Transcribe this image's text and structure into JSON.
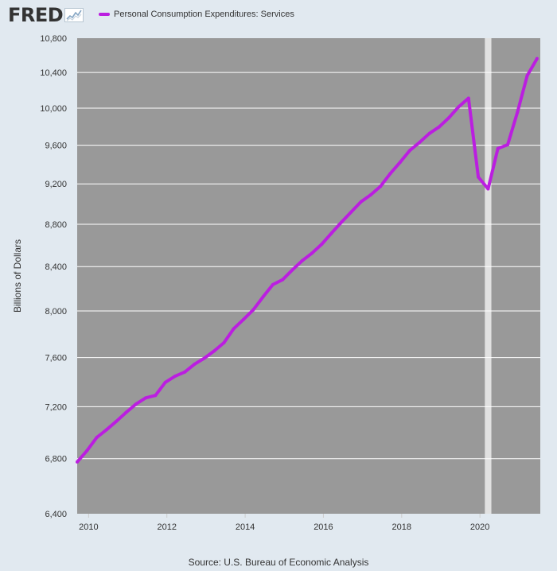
{
  "header": {
    "logo_text": "FRED",
    "logo_icon": "fred-chart-icon"
  },
  "legend": {
    "series_label": "Personal Consumption Expenditures: Services"
  },
  "colors": {
    "background": "#e1e9f0",
    "plot_background": "#999999",
    "series": "#bb1ee0",
    "recession_band": "#e1e1e1",
    "grid": "#ffffff"
  },
  "source": "Source: U.S. Bureau of Economic Analysis",
  "chart_data": {
    "type": "line",
    "title": "",
    "xlabel": "",
    "ylabel": "Billions of Dollars",
    "y_scale": "log",
    "xlim": [
      2009.708,
      2021.542
    ],
    "ylim": [
      6400,
      10800
    ],
    "grid": "horizontal",
    "legend_position": "top-left",
    "y_ticks": [
      6400,
      6800,
      7200,
      7600,
      8000,
      8400,
      8800,
      9200,
      9600,
      10000,
      10400,
      10800
    ],
    "y_tick_labels": [
      "6,400",
      "6,800",
      "7,200",
      "7,600",
      "8,000",
      "8,400",
      "8,800",
      "9,200",
      "9,600",
      "10,000",
      "10,400",
      "10,800"
    ],
    "x_ticks": [
      2010,
      2012,
      2014,
      2016,
      2018,
      2020
    ],
    "x_tick_labels": [
      "2010",
      "2012",
      "2014",
      "2016",
      "2018",
      "2020"
    ],
    "recession": [
      2020.125,
      2020.292
    ],
    "series": [
      {
        "name": "Personal Consumption Expenditures: Services",
        "x": [
          2009.708,
          2009.958,
          2010.208,
          2010.458,
          2010.708,
          2010.958,
          2011.208,
          2011.458,
          2011.708,
          2011.958,
          2012.208,
          2012.458,
          2012.708,
          2012.958,
          2013.208,
          2013.458,
          2013.708,
          2013.958,
          2014.208,
          2014.458,
          2014.708,
          2014.958,
          2015.208,
          2015.458,
          2015.708,
          2015.958,
          2016.208,
          2016.458,
          2016.708,
          2016.958,
          2017.208,
          2017.458,
          2017.708,
          2017.958,
          2018.208,
          2018.458,
          2018.708,
          2018.958,
          2019.208,
          2019.458,
          2019.708,
          2019.958,
          2020.208,
          2020.458,
          2020.708,
          2020.958,
          2021.208,
          2021.458
        ],
        "y": [
          6775,
          6860,
          6960,
          7020,
          7085,
          7155,
          7220,
          7270,
          7290,
          7395,
          7445,
          7480,
          7545,
          7595,
          7655,
          7725,
          7845,
          7925,
          8010,
          8125,
          8235,
          8280,
          8370,
          8455,
          8525,
          8610,
          8715,
          8820,
          8920,
          9020,
          9090,
          9175,
          9305,
          9420,
          9545,
          9630,
          9725,
          9795,
          9895,
          10015,
          10110,
          9270,
          9150,
          9565,
          9605,
          9955,
          10365,
          10560
        ]
      }
    ]
  }
}
